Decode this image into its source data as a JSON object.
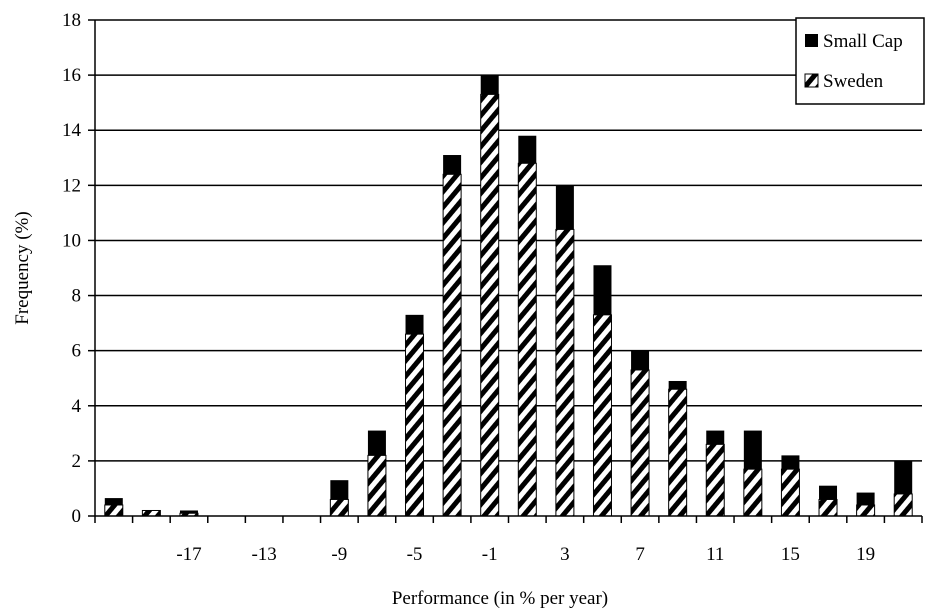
{
  "chart_data": {
    "type": "bar",
    "stacked": true,
    "title": "",
    "xlabel": "Performance (in % per year)",
    "ylabel": "Frequency (%)",
    "ylim": [
      0,
      18
    ],
    "yticks": [
      "0",
      "2",
      "4",
      "6",
      "8",
      "10",
      "12",
      "14",
      "16",
      "18"
    ],
    "categories": [
      -21,
      -19,
      -17,
      -15,
      -13,
      -11,
      -9,
      -7,
      -5,
      -3,
      -1,
      1,
      3,
      5,
      7,
      9,
      11,
      13,
      15,
      17,
      19,
      21
    ],
    "xtick_labels": [
      "-17",
      "-13",
      "-9",
      "-5",
      "-1",
      "3",
      "7",
      "11",
      "15",
      "19"
    ],
    "grid": true,
    "legend_position": "top-right",
    "series": [
      {
        "name": "Sweden",
        "pattern": "hatched",
        "values": [
          0.4,
          0.2,
          0.1,
          0,
          0,
          0,
          0.6,
          2.2,
          6.6,
          12.4,
          15.3,
          12.8,
          10.4,
          7.3,
          5.3,
          4.6,
          2.6,
          1.7,
          1.7,
          0.6,
          0.4,
          0.8
        ]
      },
      {
        "name": "Small Cap",
        "color": "#000000",
        "values": [
          0.25,
          0,
          0.1,
          0,
          0,
          0,
          0.7,
          0.9,
          0.7,
          0.7,
          0.7,
          1.0,
          1.6,
          1.8,
          0.7,
          0.3,
          0.5,
          1.4,
          0.5,
          0.5,
          0.45,
          1.2
        ]
      }
    ]
  }
}
